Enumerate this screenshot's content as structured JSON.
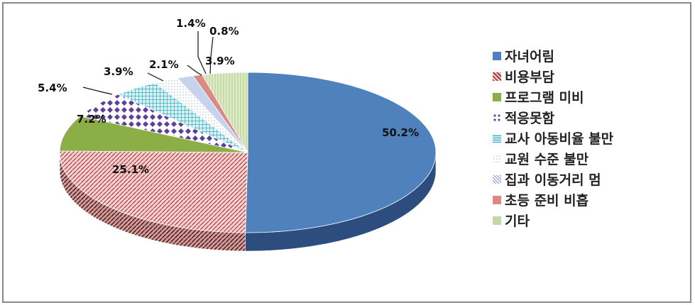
{
  "chart_data": {
    "type": "pie",
    "series": [
      {
        "label": "자녀어림",
        "value": 50.2,
        "value_label": "50.2%",
        "color": "#4f81bd"
      },
      {
        "label": "비용부담",
        "value": 25.1,
        "value_label": "25.1%",
        "color": "#e8aeb0"
      },
      {
        "label": "프로그램 미비",
        "value": 7.2,
        "value_label": "7.2%",
        "color": "#8cae47"
      },
      {
        "label": "적응못함",
        "value": 5.4,
        "value_label": "5.4%",
        "color": "#6a55a8"
      },
      {
        "label": "교사 아동비율 불만",
        "value": 3.9,
        "value_label": "3.9%",
        "color": "#4fb8c8"
      },
      {
        "label": "교원 수준 불만",
        "value": 2.1,
        "value_label": "2.1%",
        "color": "#dde8f0"
      },
      {
        "label": "집과 이동거리 멈",
        "value": 1.4,
        "value_label": "1.4%",
        "color": "#9fb4e0"
      },
      {
        "label": "초등 준비 비흡",
        "value": 0.8,
        "value_label": "0.8%",
        "color": "#d97f7a"
      },
      {
        "label": "기타",
        "value": 3.9,
        "value_label": "3.9%",
        "color": "#c4d8a4"
      }
    ],
    "legend_position": "right"
  }
}
